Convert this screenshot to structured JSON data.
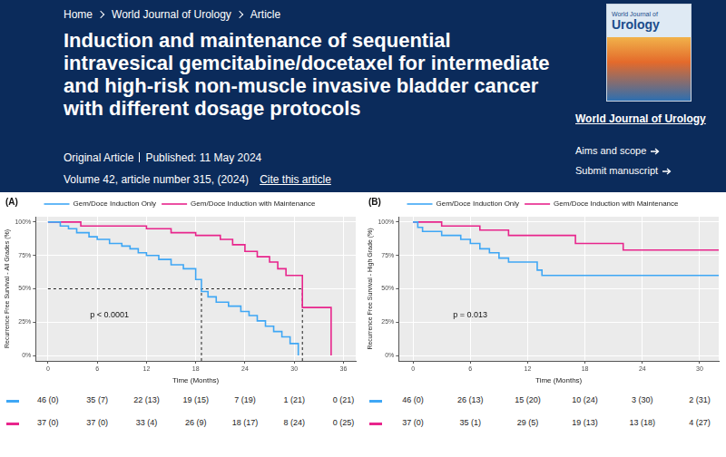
{
  "header": {
    "breadcrumb": [
      "Home",
      "World Journal of Urology",
      "Article"
    ],
    "title": "Induction and maintenance of sequential intravesical gemcitabine/docetaxel for intermediate and high-risk non-muscle invasive bladder cancer with different dosage protocols",
    "article_type": "Original Article",
    "published": "Published: 11 May 2024",
    "volume": "Volume 42, article number 315, (2024)",
    "cite": "Cite this article",
    "cover_title": [
      "World Journal of",
      "Urology"
    ],
    "journal": "World Journal of Urology",
    "links": [
      "Aims and scope",
      "Submit manuscript"
    ]
  },
  "chart_data": [
    {
      "type": "step",
      "panel": "(A)",
      "x_label": "Time (Months)",
      "y_label": "Recurrence Free Survival - All Grades (%)",
      "annotation": "p < 0.0001",
      "xlim": [
        -1.5,
        37.5
      ],
      "xticks": [
        0,
        6,
        12,
        18,
        24,
        30,
        36
      ],
      "ylim": [
        -4,
        104
      ],
      "yticks": [
        {
          "value": 0,
          "label": "0%"
        },
        {
          "value": 25,
          "label": "25%"
        },
        {
          "value": 50,
          "label": "50%"
        },
        {
          "value": 75,
          "label": "75%"
        },
        {
          "value": 100,
          "label": "100%"
        }
      ],
      "grid": true,
      "legend": "top",
      "series": [
        {
          "name": "Gem/Doce Induction Only",
          "color": "#3fa7f5",
          "x": [
            0,
            1.5,
            2.5,
            3.5,
            5,
            6,
            7.5,
            9,
            10,
            11,
            12,
            13.5,
            15,
            16.5,
            18,
            18.7,
            19.5,
            20.5,
            22,
            23.5,
            24.5,
            25.5,
            26.5,
            27.5,
            28.5,
            29.5,
            30.5
          ],
          "values": [
            100,
            97,
            95,
            92,
            89,
            87,
            84,
            82,
            80,
            77,
            75,
            72,
            68,
            65,
            57,
            48,
            44,
            40,
            37,
            33,
            30,
            26,
            22,
            18,
            14,
            9,
            0
          ]
        },
        {
          "name": "Gem/Doce Induction with Maintenance",
          "color": "#e8258c",
          "x": [
            0,
            4,
            12,
            15,
            18,
            21,
            22.5,
            24,
            25.5,
            27,
            28,
            29,
            31,
            34.5
          ],
          "values": [
            100,
            97,
            95,
            92,
            90,
            87,
            83,
            78,
            74,
            70,
            65,
            60,
            36,
            0
          ]
        }
      ],
      "median_lines": {
        "y": 50,
        "x": [
          18.7,
          31
        ]
      },
      "risk_table": [
        [
          "46 (0)",
          "35 (7)",
          "22 (13)",
          "19 (15)",
          "7 (19)",
          "1 (21)",
          "0 (21)"
        ],
        [
          "37 (0)",
          "37 (0)",
          "33 (4)",
          "26 (9)",
          "18 (17)",
          "8 (24)",
          "0 (25)"
        ]
      ]
    },
    {
      "type": "step",
      "panel": "(B)",
      "x_label": "Time (Months)",
      "y_label": "Recurrence Free Survival - High Grade (%)",
      "annotation": "p = 0.013",
      "xlim": [
        -1.5,
        32
      ],
      "xticks": [
        0,
        6,
        12,
        18,
        24,
        30
      ],
      "ylim": [
        -4,
        104
      ],
      "yticks": [
        {
          "value": 0,
          "label": "0%"
        },
        {
          "value": 25,
          "label": "25%"
        },
        {
          "value": 50,
          "label": "50%"
        },
        {
          "value": 75,
          "label": "75%"
        },
        {
          "value": 100,
          "label": "100%"
        }
      ],
      "grid": true,
      "legend": "top",
      "series": [
        {
          "name": "Gem/Doce Induction Only",
          "color": "#3fa7f5",
          "x": [
            0,
            0.5,
            1,
            3,
            5,
            6,
            7,
            8,
            9,
            10,
            13,
            13.5,
            32
          ],
          "values": [
            100,
            96,
            93,
            90,
            87,
            84,
            80,
            77,
            73,
            70,
            64,
            60,
            60
          ]
        },
        {
          "name": "Gem/Doce Induction with Maintenance",
          "color": "#e8258c",
          "x": [
            0,
            3,
            7,
            10,
            17,
            22,
            32
          ],
          "values": [
            100,
            97,
            94,
            90,
            84,
            79,
            79
          ]
        }
      ],
      "risk_table": [
        [
          "46 (0)",
          "26 (13)",
          "15 (20)",
          "10 (24)",
          "3 (30)",
          "2 (31)"
        ],
        [
          "37 (0)",
          "35 (1)",
          "29 (5)",
          "19 (13)",
          "13 (18)",
          "4 (27)"
        ]
      ]
    }
  ]
}
